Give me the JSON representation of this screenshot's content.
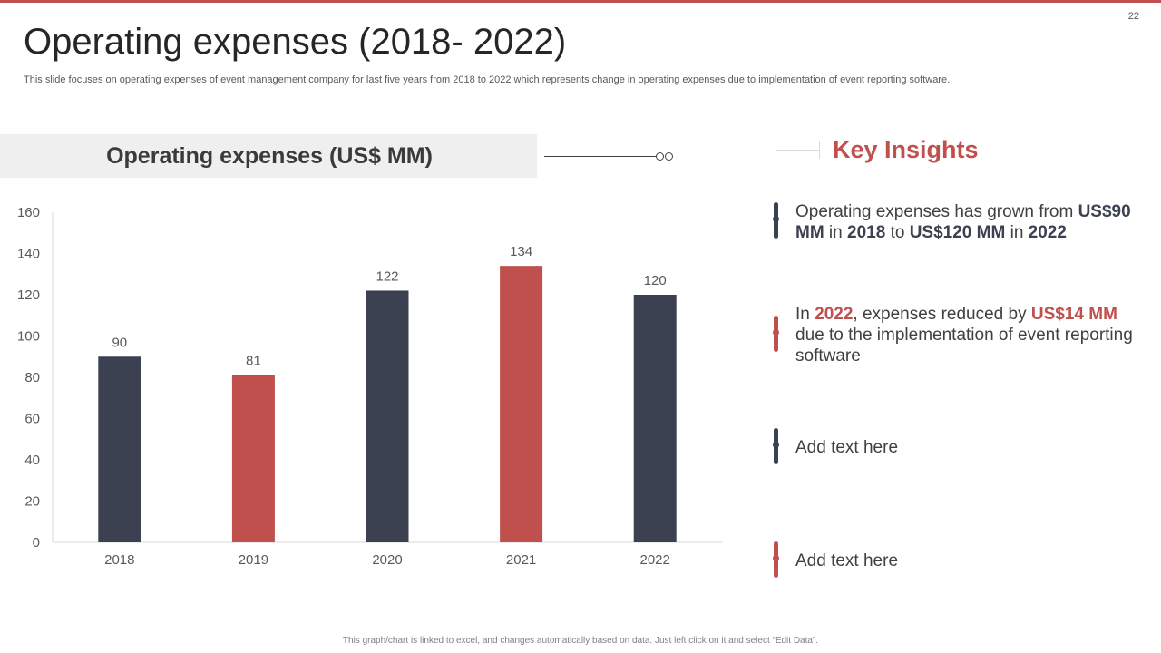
{
  "page_number": "22",
  "title": "Operating expenses (2018- 2022)",
  "subtitle": "This slide focuses on operating expenses of event management company for last five years from 2018 to 2022 which represents change in operating expenses due to implementation of event reporting software.",
  "chart_header": "Operating expenses (US$ MM)",
  "colors": {
    "dark": "#3b4150",
    "red": "#c0504d"
  },
  "chart_data": {
    "type": "bar",
    "title": "Operating expenses (US$ MM)",
    "categories": [
      "2018",
      "2019",
      "2020",
      "2021",
      "2022"
    ],
    "values": [
      90,
      81,
      122,
      134,
      120
    ],
    "bar_colors": [
      "#3b4150",
      "#c0504d",
      "#3b4150",
      "#c0504d",
      "#3b4150"
    ],
    "ylim": [
      0,
      160
    ],
    "yticks": [
      "0",
      "20",
      "40",
      "60",
      "80",
      "100",
      "120",
      "140",
      "160"
    ],
    "xlabel": "",
    "ylabel": "",
    "data_labels": [
      "90",
      "81",
      "122",
      "134",
      "120"
    ]
  },
  "insights": {
    "title": "Key Insights",
    "item1": {
      "p1": "Operating expenses has grown from ",
      "v1": "US$90 MM",
      "p2": " in ",
      "v2": "2018",
      "p3": " to ",
      "v3": "US$120 MM",
      "p4": " in ",
      "v4": "2022"
    },
    "item2": {
      "p1": "In ",
      "v1": "2022",
      "p2": ", expenses reduced by ",
      "v2": "US$14 MM",
      "p3": " due to the implementation of event reporting software"
    },
    "item3": "Add text here",
    "item4": "Add text here"
  },
  "footnote": "This graph/chart is linked to excel, and changes automatically based on data. Just left click on it and select “Edit Data”."
}
